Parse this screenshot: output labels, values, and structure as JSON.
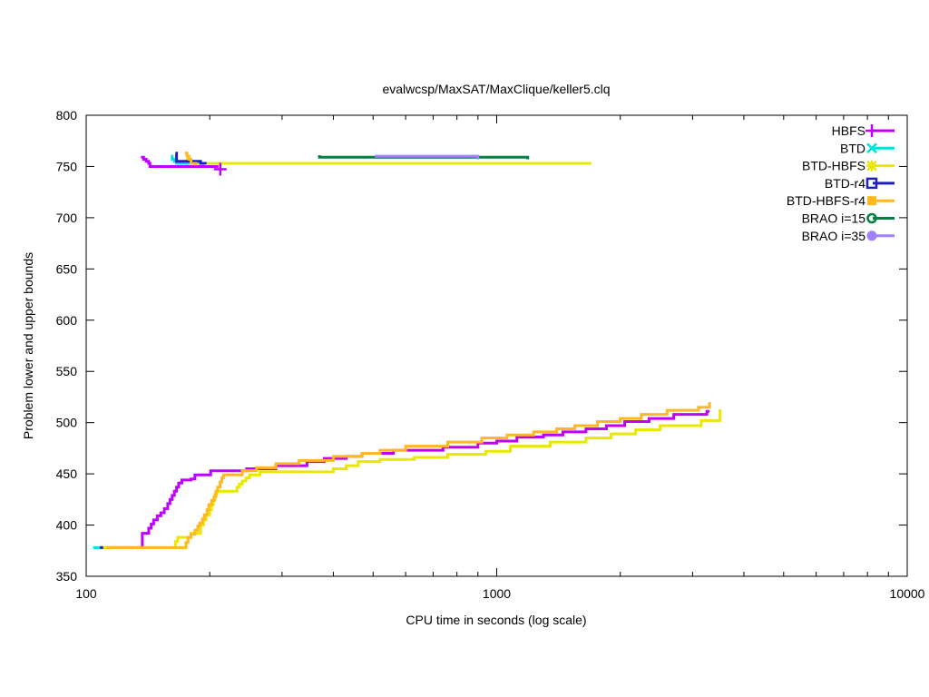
{
  "chart_data": {
    "type": "line",
    "title": "evalwcsp/MaxSAT/MaxClique/keller5.clq",
    "xlabel": "CPU time in seconds (log scale)",
    "ylabel": "Problem lower and upper bounds",
    "xscale": "log",
    "xlim": [
      100,
      10000
    ],
    "ylim": [
      350,
      800
    ],
    "xticks": [
      100,
      1000,
      10000
    ],
    "xtick_labels": [
      "100",
      "1000",
      "10000"
    ],
    "yticks": [
      350,
      400,
      450,
      500,
      550,
      600,
      650,
      700,
      750,
      800
    ],
    "ytick_labels": [
      "350",
      "400",
      "450",
      "500",
      "550",
      "600",
      "650",
      "700",
      "750",
      "800"
    ],
    "grid": false,
    "legend_position": "top-right",
    "step": "after",
    "series": [
      {
        "name": "HBFS",
        "color": "#c000ff",
        "marker": "plus",
        "lower": [
          [
            108,
            378
          ],
          [
            137,
            378
          ],
          [
            137,
            392
          ],
          [
            140,
            392
          ],
          [
            142,
            397
          ],
          [
            144,
            401
          ],
          [
            146,
            405
          ],
          [
            149,
            409
          ],
          [
            152,
            412
          ],
          [
            155,
            416
          ],
          [
            158,
            421
          ],
          [
            160,
            425
          ],
          [
            162,
            429
          ],
          [
            164,
            433
          ],
          [
            166,
            437
          ],
          [
            168,
            441
          ],
          [
            171,
            444
          ],
          [
            180,
            445
          ],
          [
            184,
            449
          ],
          [
            199,
            449
          ],
          [
            201,
            453
          ],
          [
            238,
            453
          ],
          [
            246,
            455
          ],
          [
            290,
            458
          ],
          [
            345,
            462
          ],
          [
            380,
            465
          ],
          [
            430,
            467
          ],
          [
            470,
            470
          ],
          [
            560,
            473
          ],
          [
            740,
            476
          ],
          [
            900,
            480
          ],
          [
            1000,
            482
          ],
          [
            1120,
            486
          ],
          [
            1300,
            488
          ],
          [
            1450,
            491
          ],
          [
            1650,
            494
          ],
          [
            1850,
            497
          ],
          [
            2050,
            501
          ],
          [
            2350,
            504
          ],
          [
            2700,
            508
          ],
          [
            3250,
            511
          ],
          [
            3300,
            511
          ]
        ],
        "upper": [
          [
            136,
            759
          ],
          [
            138,
            757
          ],
          [
            140,
            755
          ],
          [
            142,
            753
          ],
          [
            143,
            750
          ],
          [
            210,
            750
          ]
        ]
      },
      {
        "name": "BTD",
        "color": "#00e0e0",
        "marker": "cross",
        "lower": [
          [
            104,
            378
          ],
          [
            108,
            378
          ]
        ],
        "upper": [
          [
            161,
            760
          ],
          [
            162,
            757
          ],
          [
            164,
            755
          ],
          [
            166,
            753
          ],
          [
            240,
            753
          ]
        ]
      },
      {
        "name": "BTD-HBFS",
        "color": "#e8e800",
        "marker": "star",
        "lower": [
          [
            108,
            378
          ],
          [
            165,
            378
          ],
          [
            165,
            384
          ],
          [
            167,
            388
          ],
          [
            180,
            388
          ],
          [
            180,
            392
          ],
          [
            190,
            392
          ],
          [
            190,
            400
          ],
          [
            193,
            405
          ],
          [
            196,
            410
          ],
          [
            200,
            415
          ],
          [
            202,
            420
          ],
          [
            204,
            425
          ],
          [
            206,
            430
          ],
          [
            208,
            433
          ],
          [
            230,
            433
          ],
          [
            233,
            437
          ],
          [
            236,
            440
          ],
          [
            240,
            443
          ],
          [
            245,
            446
          ],
          [
            250,
            449
          ],
          [
            265,
            452
          ],
          [
            380,
            452
          ],
          [
            400,
            455
          ],
          [
            430,
            458
          ],
          [
            460,
            462
          ],
          [
            520,
            464
          ],
          [
            630,
            466
          ],
          [
            760,
            469
          ],
          [
            940,
            472
          ],
          [
            1080,
            477
          ],
          [
            1350,
            481
          ],
          [
            1650,
            485
          ],
          [
            1900,
            489
          ],
          [
            2180,
            493
          ],
          [
            2500,
            497
          ],
          [
            3150,
            502
          ],
          [
            3500,
            507
          ],
          [
            3500,
            513
          ]
        ],
        "upper": [
          [
            175,
            757
          ],
          [
            180,
            753
          ],
          [
            1700,
            753
          ]
        ]
      },
      {
        "name": "BTD-r4",
        "color": "#2020c0",
        "marker": "square",
        "lower": [
          [
            108,
            378
          ],
          [
            110,
            378
          ]
        ],
        "upper": [
          [
            165,
            763
          ],
          [
            166,
            755
          ],
          [
            185,
            755
          ],
          [
            190,
            753
          ],
          [
            195,
            752
          ]
        ]
      },
      {
        "name": "BTD-HBFS-r4",
        "color": "#ffb820",
        "marker": "filled-square",
        "lower": [
          [
            112,
            378
          ],
          [
            175,
            378
          ],
          [
            175,
            383
          ],
          [
            177,
            388
          ],
          [
            180,
            391
          ],
          [
            184,
            395
          ],
          [
            187,
            399
          ],
          [
            189,
            402
          ],
          [
            192,
            406
          ],
          [
            194,
            410
          ],
          [
            197,
            415
          ],
          [
            199,
            420
          ],
          [
            202,
            424
          ],
          [
            205,
            428
          ],
          [
            207,
            433
          ],
          [
            209,
            437
          ],
          [
            212,
            442
          ],
          [
            214,
            446
          ],
          [
            216,
            449
          ],
          [
            240,
            453
          ],
          [
            260,
            456
          ],
          [
            290,
            460
          ],
          [
            330,
            463
          ],
          [
            400,
            467
          ],
          [
            470,
            470
          ],
          [
            520,
            473
          ],
          [
            600,
            477
          ],
          [
            760,
            481
          ],
          [
            920,
            485
          ],
          [
            1060,
            488
          ],
          [
            1230,
            491
          ],
          [
            1400,
            494
          ],
          [
            1550,
            497
          ],
          [
            1760,
            501
          ],
          [
            2000,
            504
          ],
          [
            2250,
            508
          ],
          [
            2600,
            512
          ],
          [
            3100,
            515
          ],
          [
            3300,
            517
          ],
          [
            3300,
            520
          ]
        ],
        "upper": [
          [
            174,
            763
          ],
          [
            176,
            760
          ],
          [
            178,
            757
          ],
          [
            180,
            753
          ],
          [
            185,
            751
          ]
        ]
      },
      {
        "name": "BRAO i=15",
        "color": "#008040",
        "marker": "circle",
        "lower": [],
        "upper": [
          [
            370,
            761
          ],
          [
            370,
            759
          ],
          [
            1190,
            759
          ],
          [
            1190,
            757
          ]
        ]
      },
      {
        "name": "BRAO i=35",
        "color": "#a080ff",
        "marker": "filled-circle",
        "lower": [],
        "upper": [
          [
            505,
            760
          ],
          [
            900,
            760
          ],
          [
            900,
            757
          ]
        ]
      }
    ]
  }
}
